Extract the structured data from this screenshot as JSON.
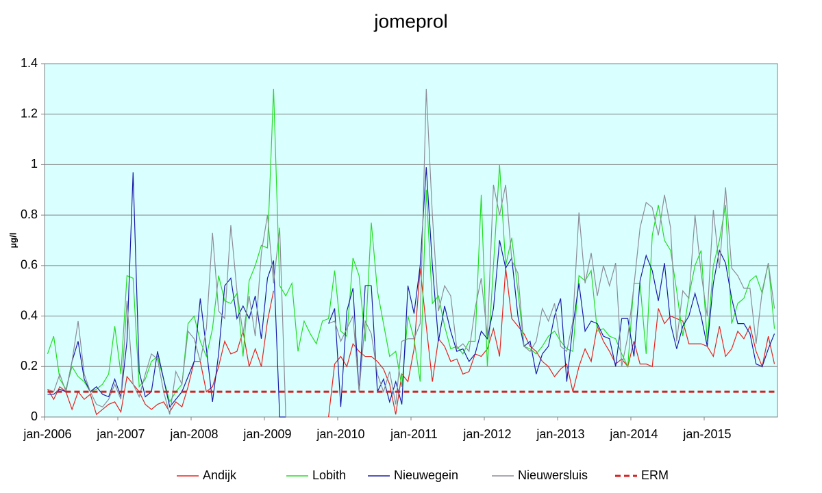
{
  "chart_data": {
    "type": "line",
    "title": "jomeprol",
    "y_label": "µg/l",
    "categories": [
      "jan-2006",
      null,
      null,
      null,
      null,
      null,
      null,
      null,
      null,
      null,
      null,
      null,
      "jan-2007",
      null,
      null,
      null,
      null,
      null,
      null,
      null,
      null,
      null,
      null,
      null,
      "jan-2008",
      null,
      null,
      null,
      null,
      null,
      null,
      null,
      null,
      null,
      null,
      null,
      "jan-2009",
      null,
      null,
      null,
      null,
      null,
      null,
      null,
      null,
      null,
      null,
      null,
      "jan-2010",
      null,
      null,
      null,
      null,
      null,
      null,
      null,
      null,
      null,
      null,
      null,
      "jan-2011",
      null,
      null,
      null,
      null,
      null,
      null,
      null,
      null,
      null,
      null,
      null,
      "jan-2012",
      null,
      null,
      null,
      null,
      null,
      null,
      null,
      null,
      null,
      null,
      null,
      "jan-2013",
      null,
      null,
      null,
      null,
      null,
      null,
      null,
      null,
      null,
      null,
      null,
      "jan-2014",
      null,
      null,
      null,
      null,
      null,
      null,
      null,
      null,
      null,
      null,
      null,
      "jan-2015",
      null,
      null,
      null,
      null,
      null,
      null,
      null,
      null,
      null,
      null,
      null
    ],
    "ylim": [
      0,
      1.4
    ],
    "yticks": [
      0,
      0.2,
      0.4,
      0.6,
      0.8,
      1,
      1.2,
      1.4
    ],
    "grid": true,
    "legend": "bottom",
    "series": [
      {
        "name": "Andijk",
        "color": "#e8201c",
        "values": [
          0.11,
          0.07,
          0.12,
          0.1,
          0.03,
          0.1,
          0.07,
          0.09,
          0.01,
          0.03,
          0.05,
          0.06,
          0.02,
          0.16,
          0.13,
          0.1,
          0.05,
          0.03,
          0.05,
          0.06,
          0.02,
          0.06,
          0.04,
          0.12,
          0.22,
          0.22,
          0.1,
          0.12,
          0.2,
          0.3,
          0.25,
          0.26,
          0.34,
          0.2,
          0.27,
          0.2,
          0.38,
          0.5,
          null,
          null,
          null,
          null,
          null,
          null,
          null,
          null,
          0,
          0.21,
          0.24,
          0.2,
          0.29,
          0.26,
          0.24,
          0.24,
          0.22,
          0.19,
          0.13,
          0.01,
          0.17,
          0.14,
          0.27,
          0.59,
          0.36,
          0.14,
          0.31,
          0.28,
          0.22,
          0.23,
          0.17,
          0.18,
          0.25,
          0.24,
          0.27,
          0.35,
          0.24,
          0.59,
          0.39,
          0.36,
          0.33,
          0.28,
          0.26,
          0.22,
          0.2,
          0.16,
          0.19,
          0.21,
          0.1,
          0.2,
          0.27,
          0.22,
          0.36,
          0.3,
          0.26,
          0.21,
          0.23,
          0.2,
          0.3,
          0.21,
          0.21,
          0.2,
          0.43,
          0.37,
          0.4,
          0.39,
          0.38,
          0.29,
          0.29,
          0.29,
          0.28,
          0.24,
          0.36,
          0.24,
          0.27,
          0.34,
          0.31,
          0.36,
          0.26,
          0.2,
          0.32,
          0.21
        ]
      },
      {
        "name": "Lobith",
        "color": "#22dd22",
        "values": [
          0.25,
          0.32,
          0.15,
          0.11,
          0.2,
          0.16,
          0.14,
          0.1,
          0.11,
          0.13,
          0.17,
          0.36,
          0.17,
          0.56,
          0.55,
          0.12,
          0.15,
          0.22,
          0.24,
          0.15,
          0.06,
          0.1,
          0.13,
          0.37,
          0.4,
          0.3,
          0.24,
          0.35,
          0.56,
          0.46,
          0.45,
          0.49,
          0.24,
          0.54,
          0.6,
          0.68,
          0.67,
          1.3,
          0.52,
          0.48,
          0.53,
          0.26,
          0.38,
          0.33,
          0.29,
          0.38,
          0.39,
          0.58,
          0.34,
          0.32,
          0.63,
          0.56,
          0.3,
          0.77,
          0.5,
          0.37,
          0.24,
          0.26,
          0.12,
          0.4,
          0.31,
          0.14,
          0.9,
          0.45,
          0.48,
          0.36,
          0.27,
          0.28,
          0.25,
          0.3,
          0.3,
          0.88,
          0.2,
          0.6,
          1,
          0.6,
          0.71,
          0.5,
          0.28,
          0.27,
          0.25,
          0.28,
          0.32,
          0.34,
          0.3,
          0.27,
          0.26,
          0.56,
          0.54,
          0.58,
          0.34,
          0.35,
          0.32,
          0.31,
          0.25,
          0.2,
          0.53,
          0.53,
          0.25,
          0.72,
          0.84,
          0.7,
          0.66,
          0.5,
          0.32,
          0.48,
          0.6,
          0.66,
          0.3,
          0.6,
          0.7,
          0.84,
          0.37,
          0.45,
          0.47,
          0.54,
          0.56,
          0.49,
          0.61,
          0.35
        ]
      },
      {
        "name": "Nieuwegein",
        "color": "#1a1aa8",
        "values": [
          0.09,
          0.09,
          0.11,
          0.1,
          0.22,
          0.3,
          0.15,
          0.1,
          0.12,
          0.09,
          0.08,
          0.15,
          0.08,
          0.3,
          0.97,
          0.18,
          0.08,
          0.1,
          0.26,
          0.15,
          0.04,
          0.07,
          0.1,
          0.16,
          0.22,
          0.47,
          0.27,
          0.06,
          0.25,
          0.52,
          0.55,
          0.39,
          0.44,
          0.39,
          0.48,
          0.31,
          0.55,
          0.62,
          0,
          0,
          null,
          null,
          null,
          null,
          null,
          null,
          0.37,
          0.43,
          0.04,
          0.42,
          0.51,
          0.1,
          0.52,
          0.52,
          0.1,
          0.15,
          0.06,
          0.14,
          0.05,
          0.52,
          0.41,
          0.6,
          0.99,
          0.6,
          0.3,
          0.44,
          0.34,
          0.26,
          0.27,
          0.22,
          0.25,
          0.34,
          0.31,
          0.43,
          0.7,
          0.59,
          0.63,
          0.4,
          0.28,
          0.3,
          0.17,
          0.25,
          0.28,
          0.4,
          0.47,
          0.14,
          0.36,
          0.53,
          0.34,
          0.38,
          0.37,
          0.32,
          0.31,
          0.2,
          0.39,
          0.39,
          0.24,
          0.54,
          0.64,
          0.58,
          0.46,
          0.61,
          0.37,
          0.27,
          0.36,
          0.4,
          0.49,
          0.4,
          0.28,
          0.53,
          0.66,
          0.61,
          0.47,
          0.37,
          0.37,
          0.33,
          0.21,
          0.2,
          0.27,
          0.33
        ]
      },
      {
        "name": "Nieuwersluis",
        "color": "#8c8c96",
        "values": [
          0.11,
          0.1,
          0.17,
          0.1,
          0.22,
          0.38,
          0.17,
          0.1,
          0.05,
          0.04,
          0.07,
          0.13,
          0.07,
          0.46,
          0.13,
          0.08,
          0.17,
          0.25,
          0.23,
          0.1,
          0.01,
          0.18,
          0.13,
          0.34,
          0.31,
          0.22,
          0.35,
          0.73,
          0.42,
          0.39,
          0.76,
          0.5,
          0.33,
          0.48,
          0.32,
          0.65,
          0.8,
          0.53,
          0.75,
          0,
          null,
          null,
          null,
          null,
          null,
          null,
          0.37,
          0.38,
          0.3,
          0.35,
          0.4,
          0.1,
          0.38,
          0.33,
          0.17,
          0.1,
          0.18,
          0.05,
          0.3,
          0.31,
          0.31,
          0.37,
          1.3,
          0.8,
          0.42,
          0.52,
          0.48,
          0.27,
          0.29,
          0.26,
          0.43,
          0.55,
          0.32,
          0.92,
          0.8,
          0.92,
          0.62,
          0.57,
          0.28,
          0.26,
          0.3,
          0.43,
          0.38,
          0.45,
          0.28,
          0.26,
          0.38,
          0.81,
          0.53,
          0.65,
          0.48,
          0.6,
          0.52,
          0.61,
          0.2,
          0.32,
          0.52,
          0.75,
          0.85,
          0.83,
          0.72,
          0.88,
          0.75,
          0.3,
          0.5,
          0.47,
          0.8,
          0.57,
          0.4,
          0.82,
          0.59,
          0.91,
          0.59,
          0.56,
          0.51,
          0.51,
          0.29,
          0.5,
          0.61,
          0.43
        ]
      },
      {
        "name": "ERM",
        "color": "#d42020",
        "dashed": true,
        "values": [
          0.1,
          0.1,
          0.1,
          0.1,
          0.1,
          0.1,
          0.1,
          0.1,
          0.1,
          0.1,
          0.1,
          0.1,
          0.1,
          0.1,
          0.1,
          0.1,
          0.1,
          0.1,
          0.1,
          0.1,
          0.1,
          0.1,
          0.1,
          0.1,
          0.1,
          0.1,
          0.1,
          0.1,
          0.1,
          0.1,
          0.1,
          0.1,
          0.1,
          0.1,
          0.1,
          0.1,
          0.1,
          0.1,
          0.1,
          0.1,
          0.1,
          0.1,
          0.1,
          0.1,
          0.1,
          0.1,
          0.1,
          0.1,
          0.1,
          0.1,
          0.1,
          0.1,
          0.1,
          0.1,
          0.1,
          0.1,
          0.1,
          0.1,
          0.1,
          0.1,
          0.1,
          0.1,
          0.1,
          0.1,
          0.1,
          0.1,
          0.1,
          0.1,
          0.1,
          0.1,
          0.1,
          0.1,
          0.1,
          0.1,
          0.1,
          0.1,
          0.1,
          0.1,
          0.1,
          0.1,
          0.1,
          0.1,
          0.1,
          0.1,
          0.1,
          0.1,
          0.1,
          0.1,
          0.1,
          0.1,
          0.1,
          0.1,
          0.1,
          0.1,
          0.1,
          0.1,
          0.1,
          0.1,
          0.1,
          0.1,
          0.1,
          0.1,
          0.1,
          0.1,
          0.1,
          0.1,
          0.1,
          0.1,
          0.1,
          0.1,
          0.1,
          0.1,
          0.1,
          0.1,
          0.1,
          0.1,
          0.1,
          0.1,
          0.1,
          0.1
        ]
      }
    ]
  }
}
